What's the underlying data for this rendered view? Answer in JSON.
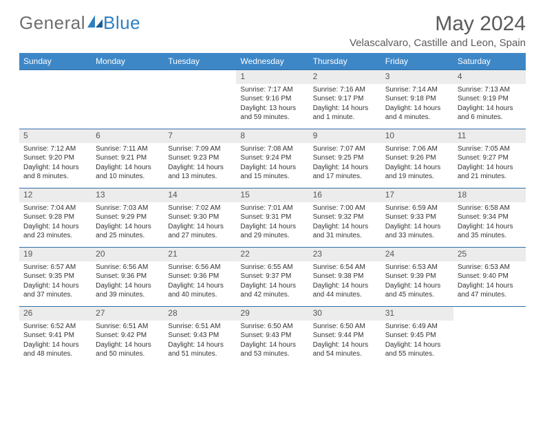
{
  "logo": {
    "text_a": "General",
    "text_b": "Blue"
  },
  "title": "May 2024",
  "subtitle": "Velascalvaro, Castille and Leon, Spain",
  "colors": {
    "header_bg": "#3d87c7",
    "header_text": "#ffffff",
    "daynum_bg": "#ececec",
    "row_border": "#2f6ea5",
    "logo_gray": "#6e6e6e",
    "logo_blue": "#2f7fbf"
  },
  "weekdays": [
    "Sunday",
    "Monday",
    "Tuesday",
    "Wednesday",
    "Thursday",
    "Friday",
    "Saturday"
  ],
  "weeks": [
    [
      null,
      null,
      null,
      {
        "n": "1",
        "sr": "7:17 AM",
        "ss": "9:16 PM",
        "dl": "13 hours and 59 minutes."
      },
      {
        "n": "2",
        "sr": "7:16 AM",
        "ss": "9:17 PM",
        "dl": "14 hours and 1 minute."
      },
      {
        "n": "3",
        "sr": "7:14 AM",
        "ss": "9:18 PM",
        "dl": "14 hours and 4 minutes."
      },
      {
        "n": "4",
        "sr": "7:13 AM",
        "ss": "9:19 PM",
        "dl": "14 hours and 6 minutes."
      }
    ],
    [
      {
        "n": "5",
        "sr": "7:12 AM",
        "ss": "9:20 PM",
        "dl": "14 hours and 8 minutes."
      },
      {
        "n": "6",
        "sr": "7:11 AM",
        "ss": "9:21 PM",
        "dl": "14 hours and 10 minutes."
      },
      {
        "n": "7",
        "sr": "7:09 AM",
        "ss": "9:23 PM",
        "dl": "14 hours and 13 minutes."
      },
      {
        "n": "8",
        "sr": "7:08 AM",
        "ss": "9:24 PM",
        "dl": "14 hours and 15 minutes."
      },
      {
        "n": "9",
        "sr": "7:07 AM",
        "ss": "9:25 PM",
        "dl": "14 hours and 17 minutes."
      },
      {
        "n": "10",
        "sr": "7:06 AM",
        "ss": "9:26 PM",
        "dl": "14 hours and 19 minutes."
      },
      {
        "n": "11",
        "sr": "7:05 AM",
        "ss": "9:27 PM",
        "dl": "14 hours and 21 minutes."
      }
    ],
    [
      {
        "n": "12",
        "sr": "7:04 AM",
        "ss": "9:28 PM",
        "dl": "14 hours and 23 minutes."
      },
      {
        "n": "13",
        "sr": "7:03 AM",
        "ss": "9:29 PM",
        "dl": "14 hours and 25 minutes."
      },
      {
        "n": "14",
        "sr": "7:02 AM",
        "ss": "9:30 PM",
        "dl": "14 hours and 27 minutes."
      },
      {
        "n": "15",
        "sr": "7:01 AM",
        "ss": "9:31 PM",
        "dl": "14 hours and 29 minutes."
      },
      {
        "n": "16",
        "sr": "7:00 AM",
        "ss": "9:32 PM",
        "dl": "14 hours and 31 minutes."
      },
      {
        "n": "17",
        "sr": "6:59 AM",
        "ss": "9:33 PM",
        "dl": "14 hours and 33 minutes."
      },
      {
        "n": "18",
        "sr": "6:58 AM",
        "ss": "9:34 PM",
        "dl": "14 hours and 35 minutes."
      }
    ],
    [
      {
        "n": "19",
        "sr": "6:57 AM",
        "ss": "9:35 PM",
        "dl": "14 hours and 37 minutes."
      },
      {
        "n": "20",
        "sr": "6:56 AM",
        "ss": "9:36 PM",
        "dl": "14 hours and 39 minutes."
      },
      {
        "n": "21",
        "sr": "6:56 AM",
        "ss": "9:36 PM",
        "dl": "14 hours and 40 minutes."
      },
      {
        "n": "22",
        "sr": "6:55 AM",
        "ss": "9:37 PM",
        "dl": "14 hours and 42 minutes."
      },
      {
        "n": "23",
        "sr": "6:54 AM",
        "ss": "9:38 PM",
        "dl": "14 hours and 44 minutes."
      },
      {
        "n": "24",
        "sr": "6:53 AM",
        "ss": "9:39 PM",
        "dl": "14 hours and 45 minutes."
      },
      {
        "n": "25",
        "sr": "6:53 AM",
        "ss": "9:40 PM",
        "dl": "14 hours and 47 minutes."
      }
    ],
    [
      {
        "n": "26",
        "sr": "6:52 AM",
        "ss": "9:41 PM",
        "dl": "14 hours and 48 minutes."
      },
      {
        "n": "27",
        "sr": "6:51 AM",
        "ss": "9:42 PM",
        "dl": "14 hours and 50 minutes."
      },
      {
        "n": "28",
        "sr": "6:51 AM",
        "ss": "9:43 PM",
        "dl": "14 hours and 51 minutes."
      },
      {
        "n": "29",
        "sr": "6:50 AM",
        "ss": "9:43 PM",
        "dl": "14 hours and 53 minutes."
      },
      {
        "n": "30",
        "sr": "6:50 AM",
        "ss": "9:44 PM",
        "dl": "14 hours and 54 minutes."
      },
      {
        "n": "31",
        "sr": "6:49 AM",
        "ss": "9:45 PM",
        "dl": "14 hours and 55 minutes."
      },
      null
    ]
  ],
  "labels": {
    "sunrise": "Sunrise:",
    "sunset": "Sunset:",
    "daylight": "Daylight:"
  }
}
